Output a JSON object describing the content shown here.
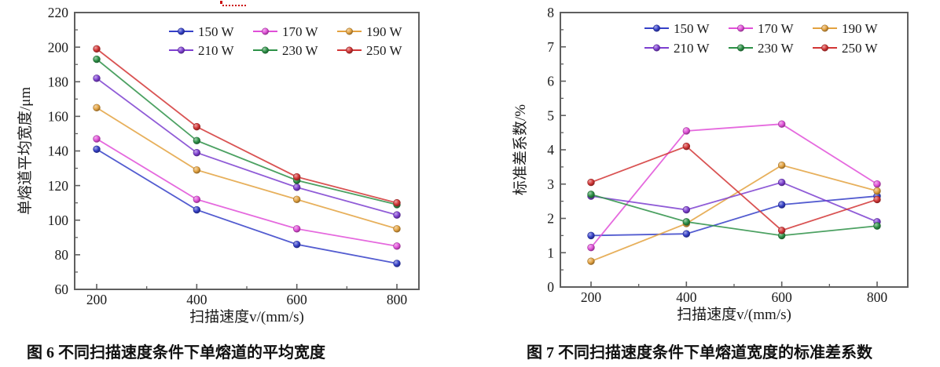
{
  "page": {
    "background": "#ffffff"
  },
  "stray_mark": {
    "color": "#cc1111"
  },
  "axis_style": {
    "frame_color": "#5f5f5f",
    "text_color": "#1a1a1a"
  },
  "chart_data": [
    {
      "type": "line",
      "caption": "图 6 不同扫描速度条件下单熔道的平均宽度",
      "xlabel": "扫描速度v/(mm/s)",
      "ylabel": "单熔道平均宽度/μm",
      "categories": [
        200,
        400,
        600,
        800
      ],
      "ylim": [
        60,
        220
      ],
      "ytick_step": 20,
      "yminor_step": 10,
      "grid": false,
      "legend_position": "top-center-inside",
      "legend_labels": [
        "150 W",
        "170 W",
        "190 W",
        "210 W",
        "230 W",
        "250 W"
      ],
      "series": [
        {
          "name": "150 W",
          "color": "#3540c8",
          "values": [
            141,
            106,
            86,
            75
          ]
        },
        {
          "name": "170 W",
          "color": "#e04fd8",
          "values": [
            147,
            112,
            95,
            85
          ]
        },
        {
          "name": "190 W",
          "color": "#e3a23f",
          "values": [
            165,
            129,
            112,
            95
          ]
        },
        {
          "name": "210 W",
          "color": "#7d3fd0",
          "values": [
            182,
            139,
            119,
            103
          ]
        },
        {
          "name": "230 W",
          "color": "#2d9147",
          "values": [
            193,
            146,
            123,
            109
          ]
        },
        {
          "name": "250 W",
          "color": "#d23535",
          "values": [
            199,
            154,
            125,
            110
          ]
        }
      ]
    },
    {
      "type": "line",
      "caption": "图 7 不同扫描速度条件下单熔道宽度的标准差系数",
      "xlabel": "扫描速度v/(mm/s)",
      "ylabel": "标准差系数/%",
      "categories": [
        200,
        400,
        600,
        800
      ],
      "ylim": [
        0,
        8
      ],
      "ytick_step": 1,
      "yminor_step": 0.5,
      "grid": false,
      "legend_position": "top-center-inside",
      "legend_labels": [
        "150 W",
        "170 W",
        "190 W",
        "210 W",
        "230 W",
        "250 W"
      ],
      "series": [
        {
          "name": "150 W",
          "color": "#3540c8",
          "values": [
            1.5,
            1.55,
            2.4,
            2.65
          ]
        },
        {
          "name": "170 W",
          "color": "#e04fd8",
          "values": [
            1.15,
            4.55,
            4.75,
            3.0
          ]
        },
        {
          "name": "190 W",
          "color": "#e3a23f",
          "values": [
            0.75,
            1.85,
            3.55,
            2.8
          ]
        },
        {
          "name": "210 W",
          "color": "#7d3fd0",
          "values": [
            2.65,
            2.25,
            3.05,
            1.9
          ]
        },
        {
          "name": "230 W",
          "color": "#2d9147",
          "values": [
            2.7,
            1.9,
            1.5,
            1.78
          ]
        },
        {
          "name": "250 W",
          "color": "#d23535",
          "values": [
            3.05,
            4.1,
            1.65,
            2.55
          ]
        }
      ]
    }
  ]
}
